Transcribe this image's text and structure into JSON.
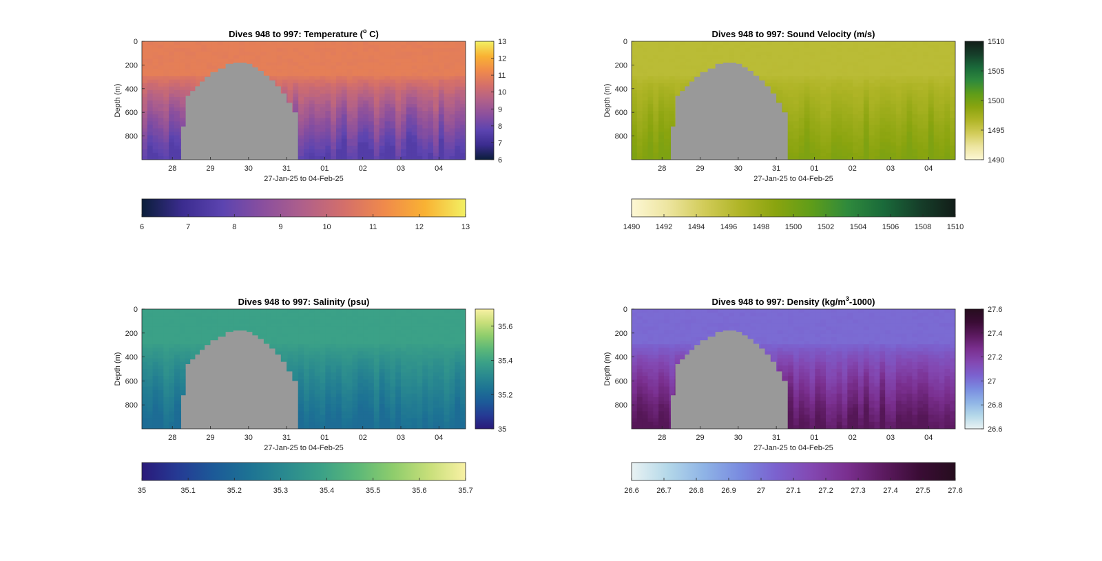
{
  "chart_data": [
    {
      "type": "heatmap",
      "id": "temperature",
      "title": "Dives 948 to 997: Temperature (",
      "title_sup": "o",
      "title_after": " C)",
      "xlabel": "27-Jan-25 to 04-Feb-25",
      "ylabel": "Depth (m)",
      "x_ticks": [
        "28",
        "29",
        "30",
        "31",
        "01",
        "02",
        "03",
        "04"
      ],
      "x_tick_values": [
        28,
        29,
        30,
        31,
        32,
        33,
        34,
        35
      ],
      "xlim": [
        27.2,
        35.7
      ],
      "ylim": [
        1000,
        0
      ],
      "y_ticks": [
        "0",
        "200",
        "400",
        "600",
        "800"
      ],
      "y_tick_values": [
        0,
        200,
        400,
        600,
        800
      ],
      "bathymetry_mask": {
        "color": "#999999",
        "x_days": [
          28.23,
          28.23,
          28.35,
          28.47,
          28.6,
          28.72,
          28.85,
          29.0,
          29.2,
          29.4,
          29.6,
          29.8,
          29.95,
          30.1,
          30.25,
          30.4,
          30.55,
          30.7,
          30.85,
          31.0,
          31.15,
          31.3,
          31.3
        ],
        "depth_m": [
          1000,
          720,
          460,
          420,
          380,
          340,
          300,
          260,
          230,
          190,
          180,
          180,
          190,
          220,
          250,
          290,
          330,
          380,
          440,
          520,
          600,
          700,
          1000
        ]
      },
      "colorbar": {
        "min": 6,
        "max": 13,
        "colormap": [
          "#0b1e3a",
          "#3b2c8f",
          "#5c44b0",
          "#8a4f9e",
          "#b0608a",
          "#d46f6a",
          "#f08a4b",
          "#f9b233",
          "#f2f063"
        ],
        "vertical_ticks": [
          "6",
          "7",
          "8",
          "9",
          "10",
          "11",
          "12",
          "13"
        ],
        "horizontal_ticks": [
          "6",
          "7",
          "8",
          "9",
          "10",
          "11",
          "12",
          "13"
        ]
      },
      "field": {
        "surface_value": 10.9,
        "deep_value": 7.5,
        "values_range": [
          6,
          13
        ]
      }
    },
    {
      "type": "heatmap",
      "id": "sound_velocity",
      "title": "Dives 948 to 997: Sound Velocity (m/s)",
      "xlabel": "27-Jan-25 to 04-Feb-25",
      "ylabel": "Depth (m)",
      "x_ticks": [
        "28",
        "29",
        "30",
        "31",
        "01",
        "02",
        "03",
        "04"
      ],
      "x_tick_values": [
        28,
        29,
        30,
        31,
        32,
        33,
        34,
        35
      ],
      "xlim": [
        27.2,
        35.7
      ],
      "ylim": [
        1000,
        0
      ],
      "y_ticks": [
        "0",
        "200",
        "400",
        "600",
        "800"
      ],
      "y_tick_values": [
        0,
        200,
        400,
        600,
        800
      ],
      "bathymetry_mask": {
        "color": "#999999",
        "x_days": [
          28.23,
          28.23,
          28.35,
          28.47,
          28.6,
          28.72,
          28.85,
          29.0,
          29.2,
          29.4,
          29.6,
          29.8,
          29.95,
          30.1,
          30.25,
          30.4,
          30.55,
          30.7,
          30.85,
          31.0,
          31.15,
          31.3,
          31.3
        ],
        "depth_m": [
          1000,
          720,
          460,
          420,
          380,
          340,
          300,
          260,
          230,
          190,
          180,
          180,
          190,
          220,
          250,
          290,
          330,
          380,
          440,
          520,
          600,
          700,
          1000
        ]
      },
      "colorbar": {
        "min": 1490,
        "max": 1510,
        "colormap": [
          "#fdf7d4",
          "#ede5a0",
          "#d2cc5a",
          "#b0b527",
          "#8aa40f",
          "#5f9d19",
          "#2f8a3c",
          "#1a6a3a",
          "#163f2a",
          "#121d18"
        ],
        "vertical_ticks": [
          "1490",
          "1495",
          "1500",
          "1505",
          "1510"
        ],
        "horizontal_ticks": [
          "1490",
          "1492",
          "1494",
          "1496",
          "1498",
          "1500",
          "1502",
          "1504",
          "1506",
          "1508",
          "1510"
        ]
      },
      "field": {
        "surface_value": 1496,
        "deep_value": 1499.5,
        "values_range": [
          1490,
          1510
        ]
      }
    },
    {
      "type": "heatmap",
      "id": "salinity",
      "title": "Dives 948 to 997: Salinity (psu)",
      "xlabel": "27-Jan-25 to 04-Feb-25",
      "ylabel": "Depth (m)",
      "x_ticks": [
        "28",
        "29",
        "30",
        "31",
        "01",
        "02",
        "03",
        "04"
      ],
      "x_tick_values": [
        28,
        29,
        30,
        31,
        32,
        33,
        34,
        35
      ],
      "xlim": [
        27.2,
        35.7
      ],
      "ylim": [
        1000,
        0
      ],
      "y_ticks": [
        "0",
        "200",
        "400",
        "600",
        "800"
      ],
      "y_tick_values": [
        0,
        200,
        400,
        600,
        800
      ],
      "bathymetry_mask": {
        "color": "#999999",
        "x_days": [
          28.23,
          28.23,
          28.35,
          28.47,
          28.6,
          28.72,
          28.85,
          29.0,
          29.2,
          29.4,
          29.6,
          29.8,
          29.95,
          30.1,
          30.25,
          30.4,
          30.55,
          30.7,
          30.85,
          31.0,
          31.15,
          31.3,
          31.3
        ],
        "depth_m": [
          1000,
          720,
          460,
          420,
          380,
          340,
          300,
          260,
          230,
          190,
          180,
          180,
          190,
          220,
          250,
          290,
          330,
          380,
          440,
          520,
          600,
          700,
          1000
        ]
      },
      "colorbar": {
        "min": 35,
        "max": 35.7,
        "colormap": [
          "#2a1a7a",
          "#253a94",
          "#1c5a98",
          "#1d7394",
          "#2a8a8f",
          "#3ba187",
          "#5cb878",
          "#8fcd6c",
          "#c8df7a",
          "#f8f1a4"
        ],
        "vertical_ticks": [
          "35",
          "35.2",
          "35.4",
          "35.6"
        ],
        "vertical_tick_values": [
          35,
          35.2,
          35.4,
          35.6
        ],
        "horizontal_ticks": [
          "35",
          "35.1",
          "35.2",
          "35.3",
          "35.4",
          "35.5",
          "35.6",
          "35.7"
        ]
      },
      "field": {
        "surface_value": 35.39,
        "deep_value": 35.21,
        "values_range": [
          35,
          35.7
        ]
      }
    },
    {
      "type": "heatmap",
      "id": "density",
      "title": "Dives 948 to 997: Density (kg/m",
      "title_sup": "3",
      "title_after": "-1000)",
      "xlabel": "27-Jan-25 to 04-Feb-25",
      "ylabel": "Depth (m)",
      "x_ticks": [
        "28",
        "29",
        "30",
        "31",
        "01",
        "02",
        "03",
        "04"
      ],
      "x_tick_values": [
        28,
        29,
        30,
        31,
        32,
        33,
        34,
        35
      ],
      "xlim": [
        27.2,
        35.7
      ],
      "ylim": [
        1000,
        0
      ],
      "y_ticks": [
        "0",
        "200",
        "400",
        "600",
        "800"
      ],
      "y_tick_values": [
        0,
        200,
        400,
        600,
        800
      ],
      "bathymetry_mask": {
        "color": "#999999",
        "x_days": [
          28.23,
          28.23,
          28.35,
          28.47,
          28.6,
          28.72,
          28.85,
          29.0,
          29.2,
          29.4,
          29.6,
          29.8,
          29.95,
          30.1,
          30.25,
          30.4,
          30.55,
          30.7,
          30.85,
          31.0,
          31.15,
          31.3,
          31.3
        ],
        "depth_m": [
          1000,
          720,
          460,
          420,
          380,
          340,
          300,
          260,
          230,
          190,
          180,
          180,
          190,
          220,
          250,
          290,
          330,
          380,
          440,
          520,
          600,
          700,
          1000
        ]
      },
      "colorbar": {
        "min": 26.6,
        "max": 27.6,
        "colormap": [
          "#e9f2f3",
          "#b4d8e9",
          "#8fb4e6",
          "#7a8ce0",
          "#7b62cf",
          "#8348b2",
          "#7a2f8f",
          "#5c1a60",
          "#3a0c35",
          "#260d1e"
        ],
        "vertical_ticks": [
          "26.6",
          "26.8",
          "27",
          "27.2",
          "27.4",
          "27.6"
        ],
        "horizontal_ticks": [
          "26.6",
          "26.7",
          "26.8",
          "26.9",
          "27",
          "27.1",
          "27.2",
          "27.3",
          "27.4",
          "27.5",
          "27.6"
        ]
      },
      "field": {
        "surface_value": 27.02,
        "deep_value": 27.4,
        "values_range": [
          26.6,
          27.6
        ]
      }
    }
  ]
}
